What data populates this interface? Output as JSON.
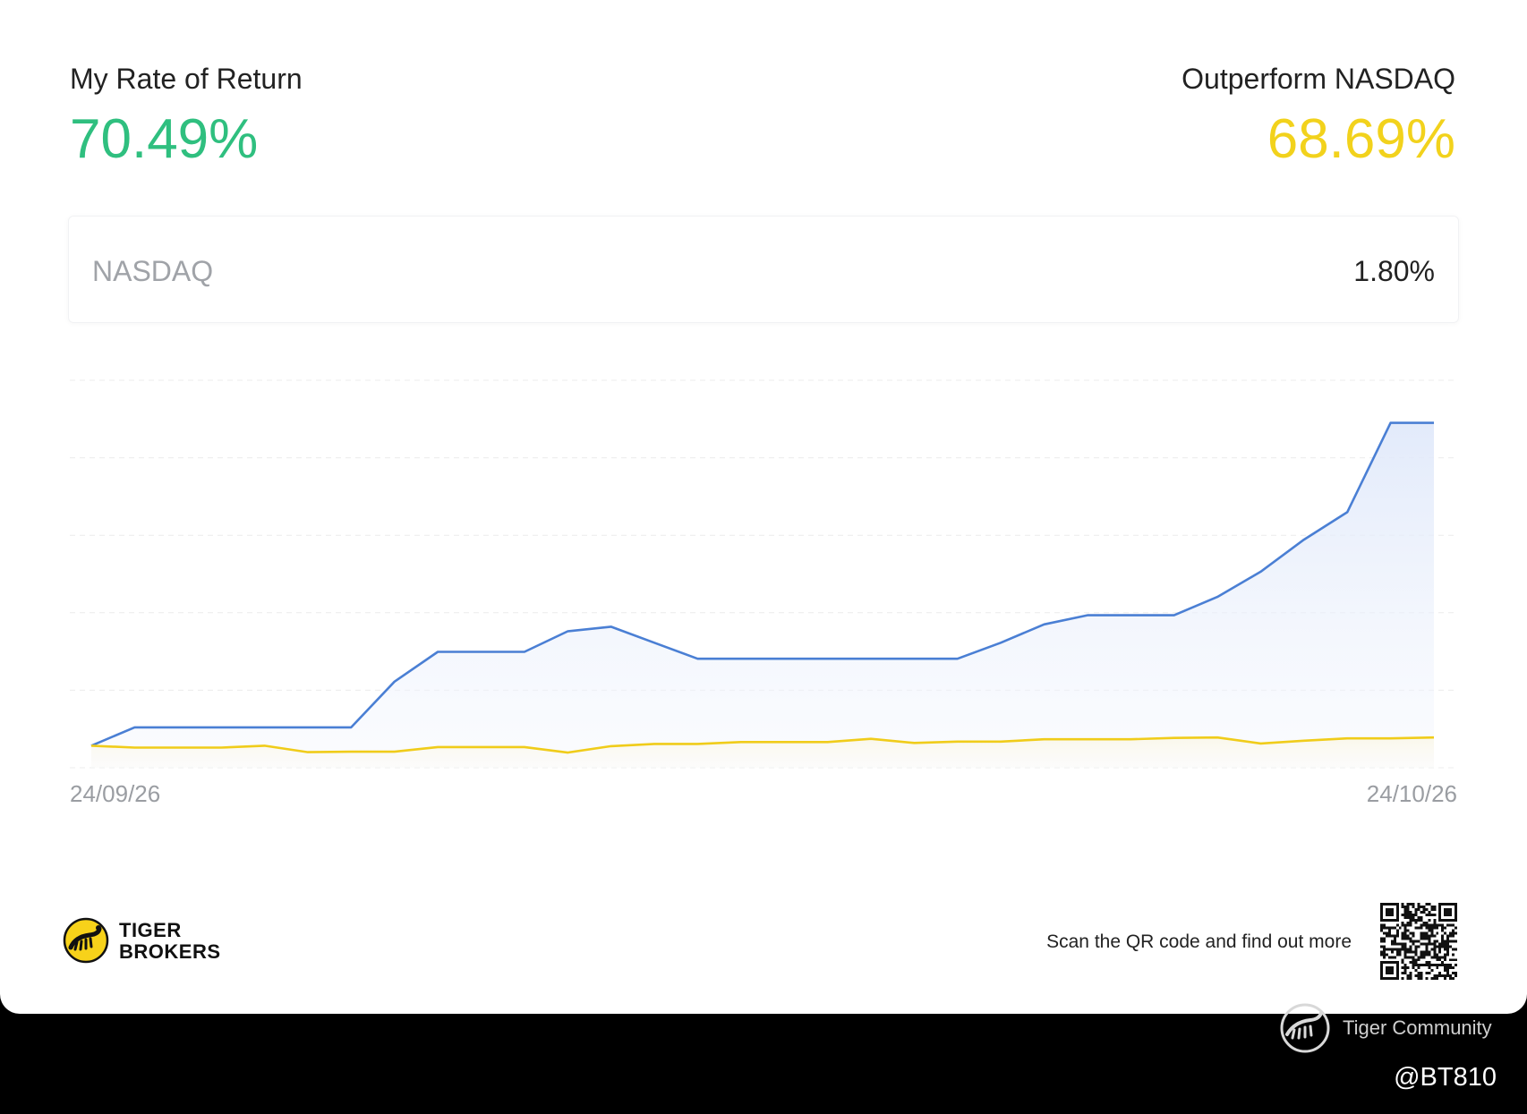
{
  "header": {
    "return_label": "My Rate of Return",
    "return_value": "70.49%",
    "outperform_label": "Outperform NASDAQ",
    "outperform_value": "68.69%"
  },
  "benchmark": {
    "name": "NASDAQ",
    "value": "1.80%"
  },
  "colors": {
    "return_green": "#2fbf7f",
    "outperform_yellow": "#f2d21c",
    "portfolio_line": "#4a7fd4",
    "benchmark_line": "#f0cc1a",
    "gridline": "#ececec"
  },
  "chart_data": {
    "type": "area",
    "title": "",
    "xlabel": "",
    "ylabel": "",
    "x_labels": [
      "24/09/26",
      "24/10/26"
    ],
    "ylim": [
      -5,
      80
    ],
    "grid": true,
    "gridline_count": 6,
    "series": [
      {
        "name": "My Rate of Return",
        "color": "#4a7fd4",
        "filled": true,
        "values": [
          0,
          4,
          4,
          4,
          4,
          4,
          4,
          14,
          20.5,
          20.5,
          20.5,
          25,
          26,
          22.5,
          19,
          19,
          19,
          19,
          19,
          19,
          19,
          22.5,
          26.5,
          28.5,
          28.5,
          28.5,
          32.5,
          38,
          45,
          51,
          70.5,
          70.5
        ]
      },
      {
        "name": "NASDAQ",
        "color": "#f0cc1a",
        "filled": true,
        "values": [
          0,
          -0.4,
          -0.4,
          -0.4,
          0,
          -1.4,
          -1.3,
          -1.3,
          -0.3,
          -0.3,
          -0.3,
          -1.5,
          -0.1,
          0.4,
          0.4,
          0.8,
          0.8,
          0.8,
          1.5,
          0.6,
          0.9,
          0.9,
          1.4,
          1.4,
          1.4,
          1.7,
          1.8,
          0.5,
          1.1,
          1.6,
          1.6,
          1.8
        ]
      }
    ]
  },
  "x_axis": {
    "start_label": "24/09/26",
    "end_label": "24/10/26"
  },
  "footer": {
    "logo_line1": "TIGER",
    "logo_line2": "BROKERS",
    "scan_text": "Scan the QR code and find out more"
  },
  "watermark": {
    "community": "Tiger Community",
    "handle": "@BT810"
  }
}
